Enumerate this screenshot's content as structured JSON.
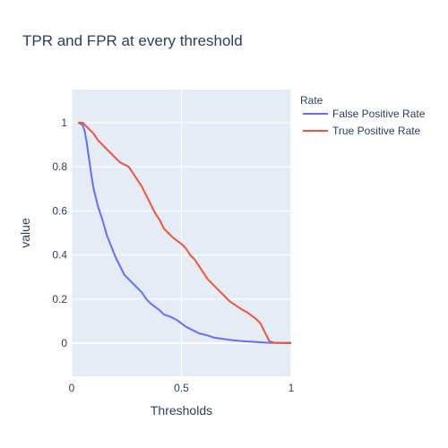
{
  "chart_data": {
    "type": "line",
    "title": "TPR and FPR at every threshold",
    "xlabel": "Thresholds",
    "ylabel": "value",
    "xlim": [
      0,
      1
    ],
    "ylim": [
      -0.15,
      1.15
    ],
    "x_ticks": [
      "0",
      "0.5",
      "1"
    ],
    "y_ticks": [
      "0",
      "0.2",
      "0.4",
      "0.6",
      "0.8",
      "1"
    ],
    "grid": true,
    "legend": {
      "title": "Rate",
      "placement": "top-right"
    },
    "series": [
      {
        "name": "False Positive Rate",
        "color": "#636efa",
        "x": [
          0.03,
          0.05,
          0.06,
          0.07,
          0.08,
          0.09,
          0.1,
          0.11,
          0.12,
          0.14,
          0.16,
          0.18,
          0.2,
          0.22,
          0.24,
          0.26,
          0.28,
          0.3,
          0.32,
          0.34,
          0.36,
          0.38,
          0.4,
          0.42,
          0.45,
          0.48,
          0.5,
          0.52,
          0.55,
          0.58,
          0.6,
          0.62,
          0.65,
          0.7,
          0.75,
          0.8,
          0.85,
          0.88,
          0.9,
          0.95,
          1.0
        ],
        "values": [
          1.0,
          0.99,
          0.96,
          0.9,
          0.83,
          0.76,
          0.7,
          0.66,
          0.62,
          0.56,
          0.49,
          0.44,
          0.39,
          0.35,
          0.31,
          0.29,
          0.27,
          0.25,
          0.23,
          0.2,
          0.18,
          0.165,
          0.15,
          0.13,
          0.12,
          0.105,
          0.09,
          0.075,
          0.06,
          0.045,
          0.04,
          0.035,
          0.025,
          0.018,
          0.012,
          0.008,
          0.005,
          0.003,
          0.002,
          0.001,
          0.0
        ]
      },
      {
        "name": "True Positive Rate",
        "color": "#ef553b",
        "x": [
          0.03,
          0.05,
          0.06,
          0.08,
          0.1,
          0.12,
          0.14,
          0.16,
          0.18,
          0.2,
          0.22,
          0.24,
          0.26,
          0.28,
          0.3,
          0.32,
          0.34,
          0.36,
          0.38,
          0.4,
          0.42,
          0.44,
          0.46,
          0.48,
          0.5,
          0.52,
          0.54,
          0.56,
          0.58,
          0.6,
          0.62,
          0.65,
          0.68,
          0.7,
          0.72,
          0.75,
          0.78,
          0.8,
          0.82,
          0.84,
          0.86,
          0.88,
          0.9,
          0.92,
          0.95,
          1.0
        ],
        "values": [
          1.0,
          1.0,
          0.99,
          0.97,
          0.95,
          0.92,
          0.9,
          0.88,
          0.86,
          0.84,
          0.82,
          0.81,
          0.8,
          0.77,
          0.74,
          0.71,
          0.67,
          0.63,
          0.59,
          0.56,
          0.52,
          0.5,
          0.48,
          0.465,
          0.45,
          0.43,
          0.4,
          0.38,
          0.35,
          0.32,
          0.29,
          0.26,
          0.23,
          0.21,
          0.19,
          0.17,
          0.15,
          0.14,
          0.125,
          0.11,
          0.09,
          0.05,
          0.01,
          0.003,
          0.002,
          0.002
        ]
      }
    ]
  }
}
